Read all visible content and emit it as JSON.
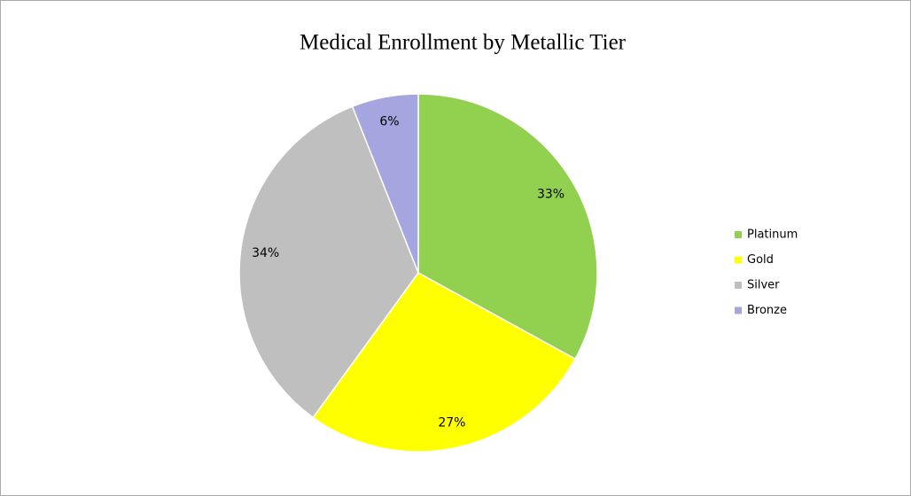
{
  "chart_data": {
    "type": "pie",
    "title": "Medical Enrollment by Metallic Tier",
    "categories": [
      "Platinum",
      "Gold",
      "Silver",
      "Bronze"
    ],
    "values": [
      33,
      27,
      34,
      6
    ],
    "value_labels": [
      "33%",
      "27%",
      "34%",
      "6%"
    ],
    "colors": [
      "#92d050",
      "#ffff00",
      "#bfbfbf",
      "#a5a5e0"
    ],
    "legend": "right"
  }
}
